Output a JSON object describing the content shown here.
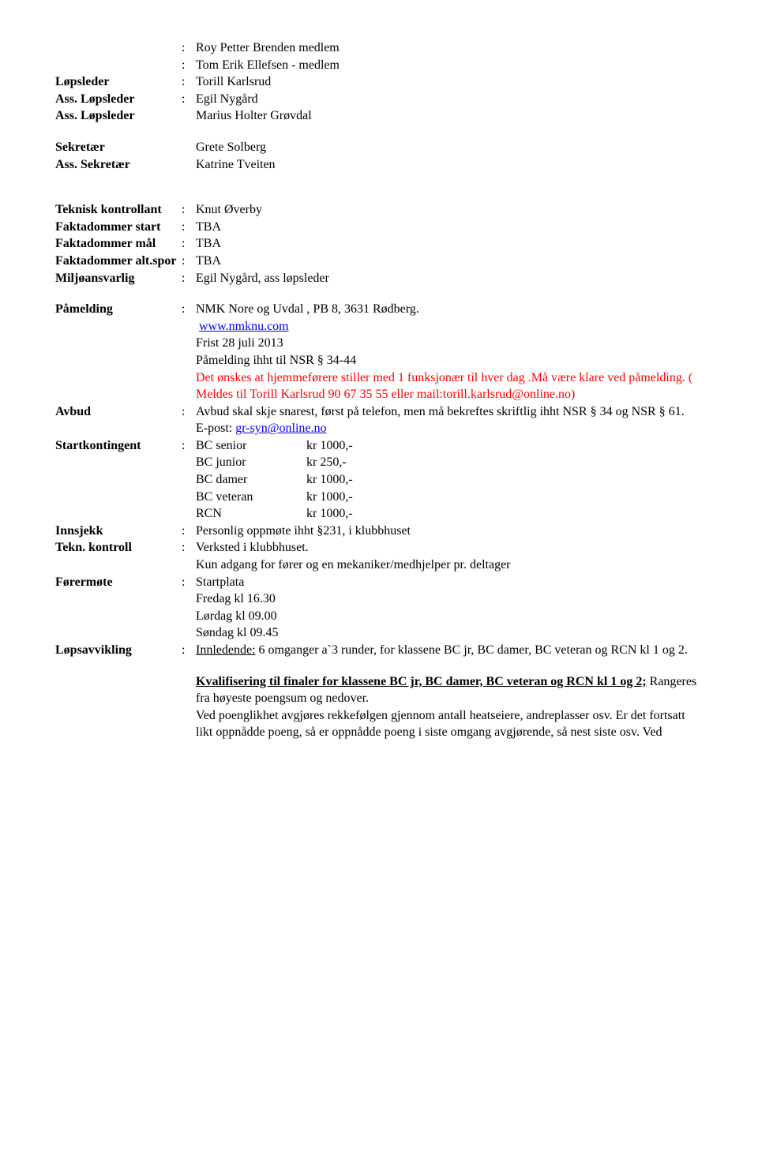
{
  "members": {
    "m1": "Roy Petter Brenden medlem",
    "m2": "Tom Erik Ellefsen - medlem"
  },
  "roles1": {
    "lopsleder_label": "Løpsleder",
    "lopsleder_value": "Torill Karlsrud",
    "ass1_label": "Ass. Løpsleder",
    "ass1_value": "Egil Nygård",
    "ass2_label": "Ass. Løpsleder",
    "ass2_value": "Marius Holter Grøvdal",
    "sek_label": "Sekretær",
    "sek_value": "Grete Solberg",
    "asssek_label": "Ass. Sekretær",
    "asssek_value": "Katrine Tveiten"
  },
  "tech": {
    "kontrollant_label": "Teknisk kontrollant",
    "kontrollant_value": "Knut Øverby",
    "fstart_label": "Faktadommer start",
    "fstart_value": "TBA",
    "fmal_label": "Faktadommer mål",
    "fmal_value": "TBA",
    "falt_label": "Faktadommer alt.spor",
    "falt_value": "TBA",
    "miljo_label": "Miljøansvarlig",
    "miljo_value": "Egil Nygård, ass løpsleder"
  },
  "pamelding": {
    "label": "Påmelding",
    "line1": "NMK Nore og Uvdal , PB 8, 3631 Rødberg.",
    "link": "www.nmknu.com",
    "line3": "Frist 28 juli 2013",
    "line4": "Påmelding ihht til NSR § 34-44",
    "red1": "Det ønskes at hjemmeførere stiller med 1 funksjonær til hver dag .Må være klare ved påmelding. ( Meldes til Torill Karlsrud  90 67 35 55 eller mail:torill.karlsrud@online.no)"
  },
  "avbud": {
    "label": "Avbud",
    "line1": "Avbud skal skje snarest, først på telefon, men må bekreftes skriftlig ihht NSR § 34 og NSR § 61.",
    "epost_prefix": "E-post: ",
    "epost_link": "gr-syn@online.no"
  },
  "start": {
    "label": "Startkontingent",
    "rows": [
      {
        "name": "BC senior",
        "price": "kr 1000,-"
      },
      {
        "name": "BC junior",
        "price": "kr   250,-"
      },
      {
        "name": "BC damer",
        "price": "kr 1000,-"
      },
      {
        "name": "BC veteran",
        "price": "kr 1000,-"
      },
      {
        "name": "RCN",
        "price": "kr 1000,-"
      }
    ]
  },
  "innsjekk": {
    "label": "Innsjekk",
    "value": "Personlig oppmøte ihht §231, i klubbhuset"
  },
  "tekn": {
    "label": "Tekn. kontroll",
    "value1": "Verksted i klubbhuset.",
    "value2": "Kun adgang for fører og en mekaniker/medhjelper pr. deltager"
  },
  "forermote": {
    "label": "Førermøte",
    "v1": "Startplata",
    "v2": "Fredag kl 16.30",
    "v3": "Lørdag kl 09.00",
    "v4": "Søndag kl 09.45"
  },
  "lops": {
    "label": "Løpsavvikling",
    "innledende_label": "Innledende:",
    "innledende_rest": " 6 omganger a`3 runder, for klassene BC jr, BC damer, BC veteran og RCN kl 1 og 2.",
    "kval_heading": "Kvalifisering til finaler for klassene BC jr, BC damer, BC veteran og RCN kl 1 og 2;",
    "kval_rest": " Rangeres fra høyeste poengsum og nedover.",
    "kval_p2": "Ved poenglikhet avgjøres rekkefølgen gjennom antall heatseiere, andreplasser osv. Er det fortsatt likt oppnådde poeng, så er oppnådde poeng i siste omgang avgjørende, så nest siste osv. Ved"
  }
}
